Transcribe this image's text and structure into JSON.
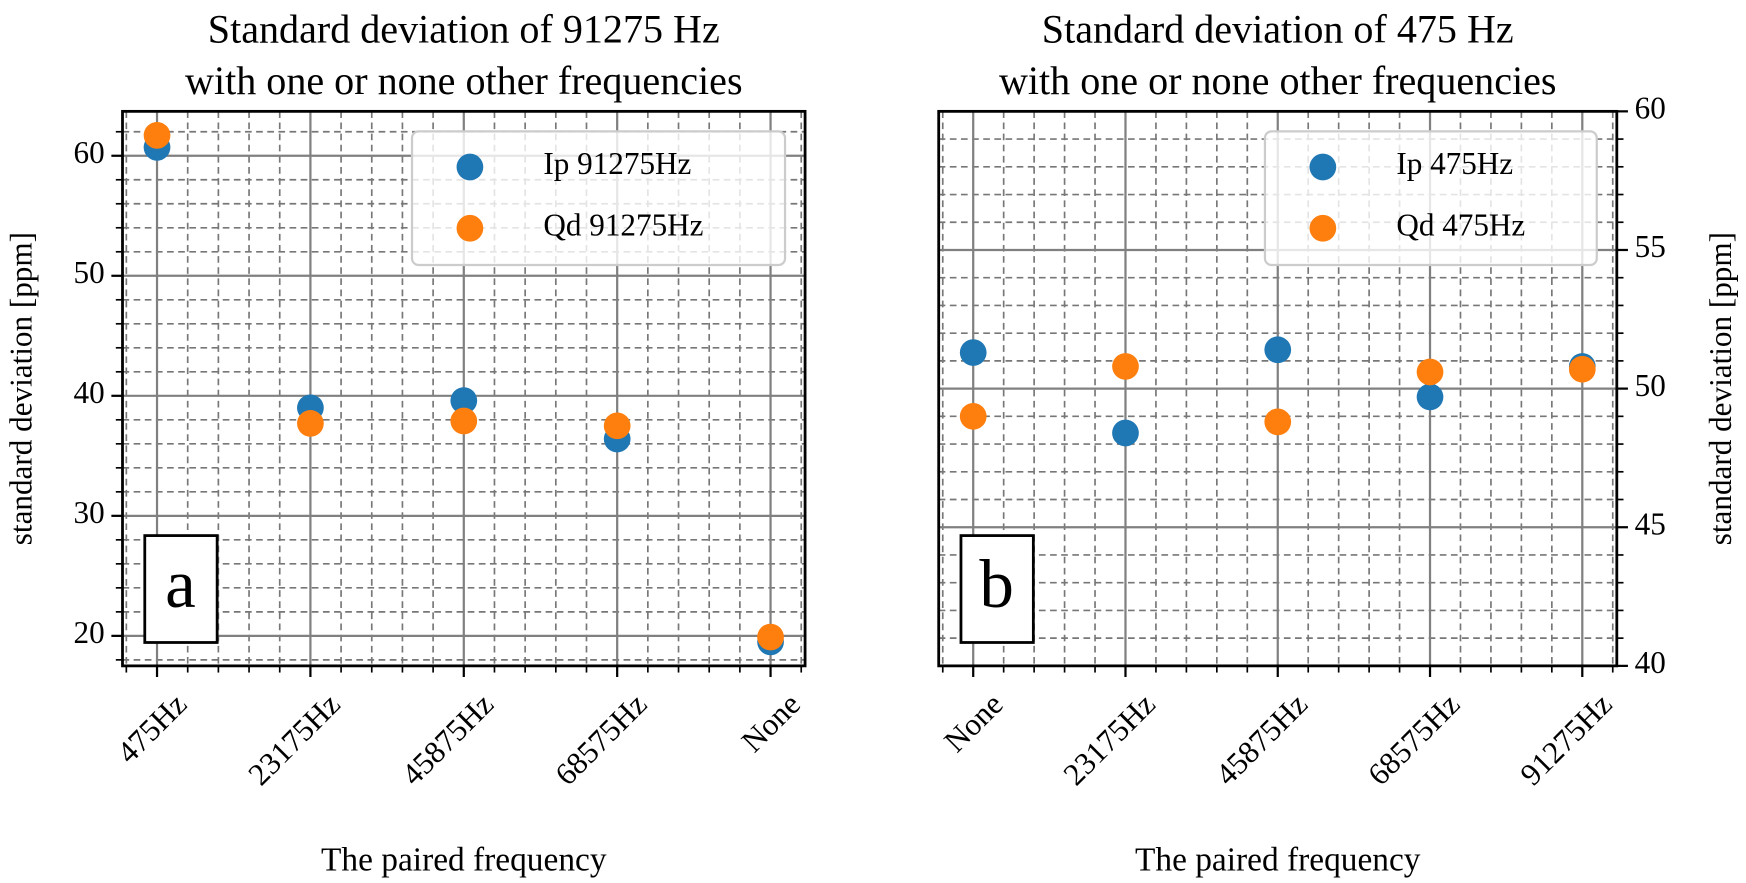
{
  "chart_data": [
    {
      "type": "scatter",
      "title": [
        "Standard deviation of 91275 Hz",
        "with one or none other frequencies"
      ],
      "x_label": "The paired frequency",
      "y_label": "standard deviation [ppm]",
      "categories": [
        "475Hz",
        "23175Hz",
        "45875Hz",
        "68575Hz",
        "None"
      ],
      "series": [
        {
          "name": "Ip 91275Hz",
          "color": "#1f77b4",
          "values": [
            60.7,
            39.0,
            39.6,
            36.4,
            19.5
          ]
        },
        {
          "name": "Qd 91275Hz",
          "color": "#ff7f0e",
          "values": [
            61.7,
            37.7,
            37.9,
            37.5,
            19.9
          ]
        }
      ],
      "ylim": [
        17.5,
        63.7
      ],
      "yticks": [
        20,
        30,
        40,
        50,
        60
      ],
      "grid": true,
      "minor_grid": true,
      "legend": "upper right",
      "y_axis_side": "left",
      "annotation": "a"
    },
    {
      "type": "scatter",
      "title": [
        "Standard deviation of 475 Hz",
        "with one or none other frequencies"
      ],
      "x_label": "The paired frequency",
      "y_label": "standard deviation [ppm]",
      "categories": [
        "None",
        "23175Hz",
        "45875Hz",
        "68575Hz",
        "91275Hz"
      ],
      "series": [
        {
          "name": "Ip 475Hz",
          "color": "#1f77b4",
          "values": [
            51.3,
            48.4,
            51.4,
            49.7,
            50.8
          ]
        },
        {
          "name": "Qd 475Hz",
          "color": "#ff7f0e",
          "values": [
            49.0,
            50.8,
            48.8,
            50.6,
            50.7
          ]
        }
      ],
      "ylim": [
        40,
        60
      ],
      "yticks": [
        40,
        45,
        50,
        55,
        60
      ],
      "grid": true,
      "minor_grid": true,
      "legend": "upper right",
      "y_axis_side": "right",
      "annotation": "b"
    }
  ]
}
